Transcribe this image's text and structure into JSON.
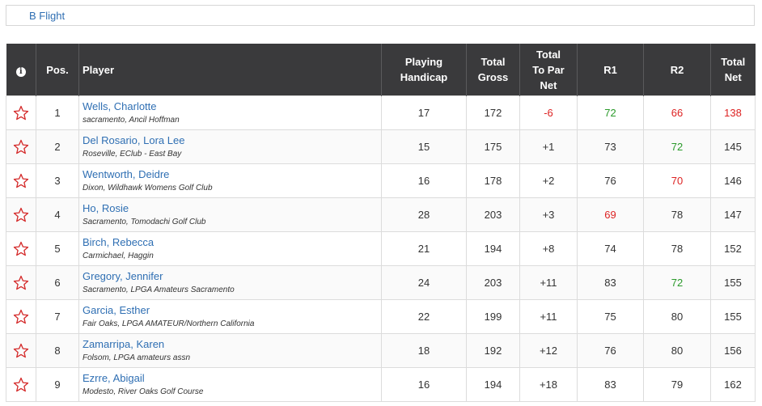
{
  "flight": {
    "label": "B Flight"
  },
  "colors": {
    "under_par": "#dd2222",
    "birdie_green": "#2a9a2a",
    "header_bg": "#3a3a3c",
    "link": "#2f6fb3"
  },
  "headers": {
    "info": "i",
    "pos": "Pos.",
    "player": "Player",
    "handicap_l1": "Playing",
    "handicap_l2": "Handicap",
    "gross_l1": "Total",
    "gross_l2": "Gross",
    "topar_l1": "Total",
    "topar_l2": "To Par",
    "topar_l3": "Net",
    "r1": "R1",
    "r2": "R2",
    "net_l1": "Total",
    "net_l2": "Net"
  },
  "rows": [
    {
      "pos": "1",
      "name": "Wells, Charlotte",
      "club": "sacramento, Ancil Hoffman",
      "handicap": "17",
      "gross": "172",
      "topar": "-6",
      "r1": "72",
      "r2": "66",
      "net": "138",
      "topar_color": "red",
      "r1_color": "green",
      "r2_color": "red",
      "net_color": "red"
    },
    {
      "pos": "2",
      "name": "Del Rosario, Lora Lee",
      "club": "Roseville, EClub - East Bay",
      "handicap": "15",
      "gross": "175",
      "topar": "+1",
      "r1": "73",
      "r2": "72",
      "net": "145",
      "topar_color": "",
      "r1_color": "",
      "r2_color": "green",
      "net_color": ""
    },
    {
      "pos": "3",
      "name": "Wentworth, Deidre",
      "club": "Dixon, Wildhawk Womens Golf Club",
      "handicap": "16",
      "gross": "178",
      "topar": "+2",
      "r1": "76",
      "r2": "70",
      "net": "146",
      "topar_color": "",
      "r1_color": "",
      "r2_color": "red",
      "net_color": ""
    },
    {
      "pos": "4",
      "name": "Ho, Rosie",
      "club": "Sacramento, Tomodachi Golf Club",
      "handicap": "28",
      "gross": "203",
      "topar": "+3",
      "r1": "69",
      "r2": "78",
      "net": "147",
      "topar_color": "",
      "r1_color": "red",
      "r2_color": "",
      "net_color": ""
    },
    {
      "pos": "5",
      "name": "Birch, Rebecca",
      "club": "Carmichael, Haggin",
      "handicap": "21",
      "gross": "194",
      "topar": "+8",
      "r1": "74",
      "r2": "78",
      "net": "152",
      "topar_color": "",
      "r1_color": "",
      "r2_color": "",
      "net_color": ""
    },
    {
      "pos": "6",
      "name": "Gregory, Jennifer",
      "club": "Sacramento, LPGA Amateurs Sacramento",
      "handicap": "24",
      "gross": "203",
      "topar": "+11",
      "r1": "83",
      "r2": "72",
      "net": "155",
      "topar_color": "",
      "r1_color": "",
      "r2_color": "green",
      "net_color": ""
    },
    {
      "pos": "7",
      "name": "Garcia, Esther",
      "club": "Fair Oaks, LPGA AMATEUR/Northern California",
      "handicap": "22",
      "gross": "199",
      "topar": "+11",
      "r1": "75",
      "r2": "80",
      "net": "155",
      "topar_color": "",
      "r1_color": "",
      "r2_color": "",
      "net_color": ""
    },
    {
      "pos": "8",
      "name": "Zamarripa, Karen",
      "club": "Folsom, LPGA amateurs assn",
      "handicap": "18",
      "gross": "192",
      "topar": "+12",
      "r1": "76",
      "r2": "80",
      "net": "156",
      "topar_color": "",
      "r1_color": "",
      "r2_color": "",
      "net_color": ""
    },
    {
      "pos": "9",
      "name": "Ezrre, Abigail",
      "club": "Modesto, River Oaks Golf Course",
      "handicap": "16",
      "gross": "194",
      "topar": "+18",
      "r1": "83",
      "r2": "79",
      "net": "162",
      "topar_color": "",
      "r1_color": "",
      "r2_color": "",
      "net_color": ""
    }
  ]
}
